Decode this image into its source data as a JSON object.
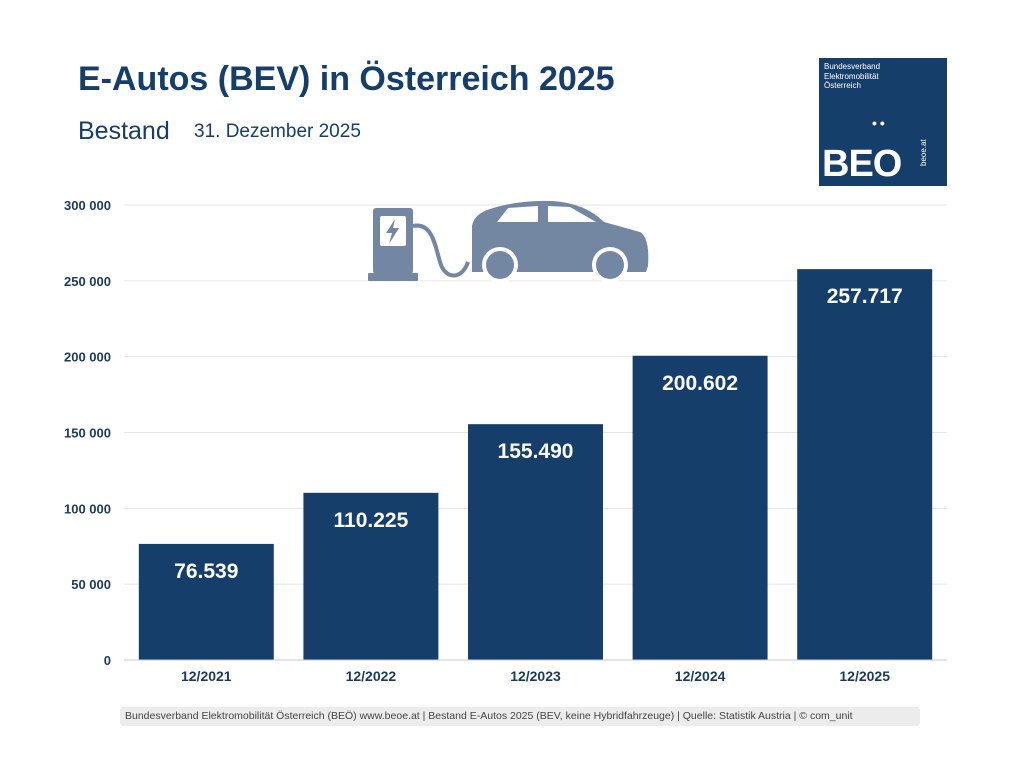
{
  "colors": {
    "brand": "#153e6a",
    "icon": "#7387a3",
    "grid": "#e6e6e6",
    "text": "#1b3a5c"
  },
  "header": {
    "title": "E-Autos (BEV) in Österreich 2025",
    "subtitle": "Bestand",
    "date": "31. Dezember 2025"
  },
  "logo": {
    "org_text": "Bundesverband\nElektromobilität\nÖsterreich",
    "dots": "••",
    "mark": "BEO",
    "url": "beoe.at"
  },
  "decorations": {
    "icon_names": [
      "charging-station-icon",
      "charging-cable-icon",
      "car-icon"
    ]
  },
  "chart_data": {
    "type": "bar",
    "title": "E-Autos (BEV) in Österreich 2025",
    "categories": [
      "12/2021",
      "12/2022",
      "12/2023",
      "12/2024",
      "12/2025"
    ],
    "values": [
      76539,
      110225,
      155490,
      200602,
      257717
    ],
    "data_labels": [
      "76.539",
      "110.225",
      "155.490",
      "200.602",
      "257.717"
    ],
    "yticks": [
      0,
      50000,
      100000,
      150000,
      200000,
      250000,
      300000
    ],
    "ytick_labels": [
      "0",
      "50 000",
      "100 000",
      "150 000",
      "200 000",
      "250 000",
      "300 000"
    ],
    "ylim": [
      0,
      300000
    ],
    "grid": true,
    "legend": "none",
    "xlabel": "",
    "ylabel": ""
  },
  "footer": {
    "text": "Bundesverband Elektromobilität Österreich (BEÖ) www.beoe.at | Bestand E-Autos 2025 (BEV, keine Hybridfahrzeuge) | Quelle: Statistik Austria | © com_unit"
  }
}
